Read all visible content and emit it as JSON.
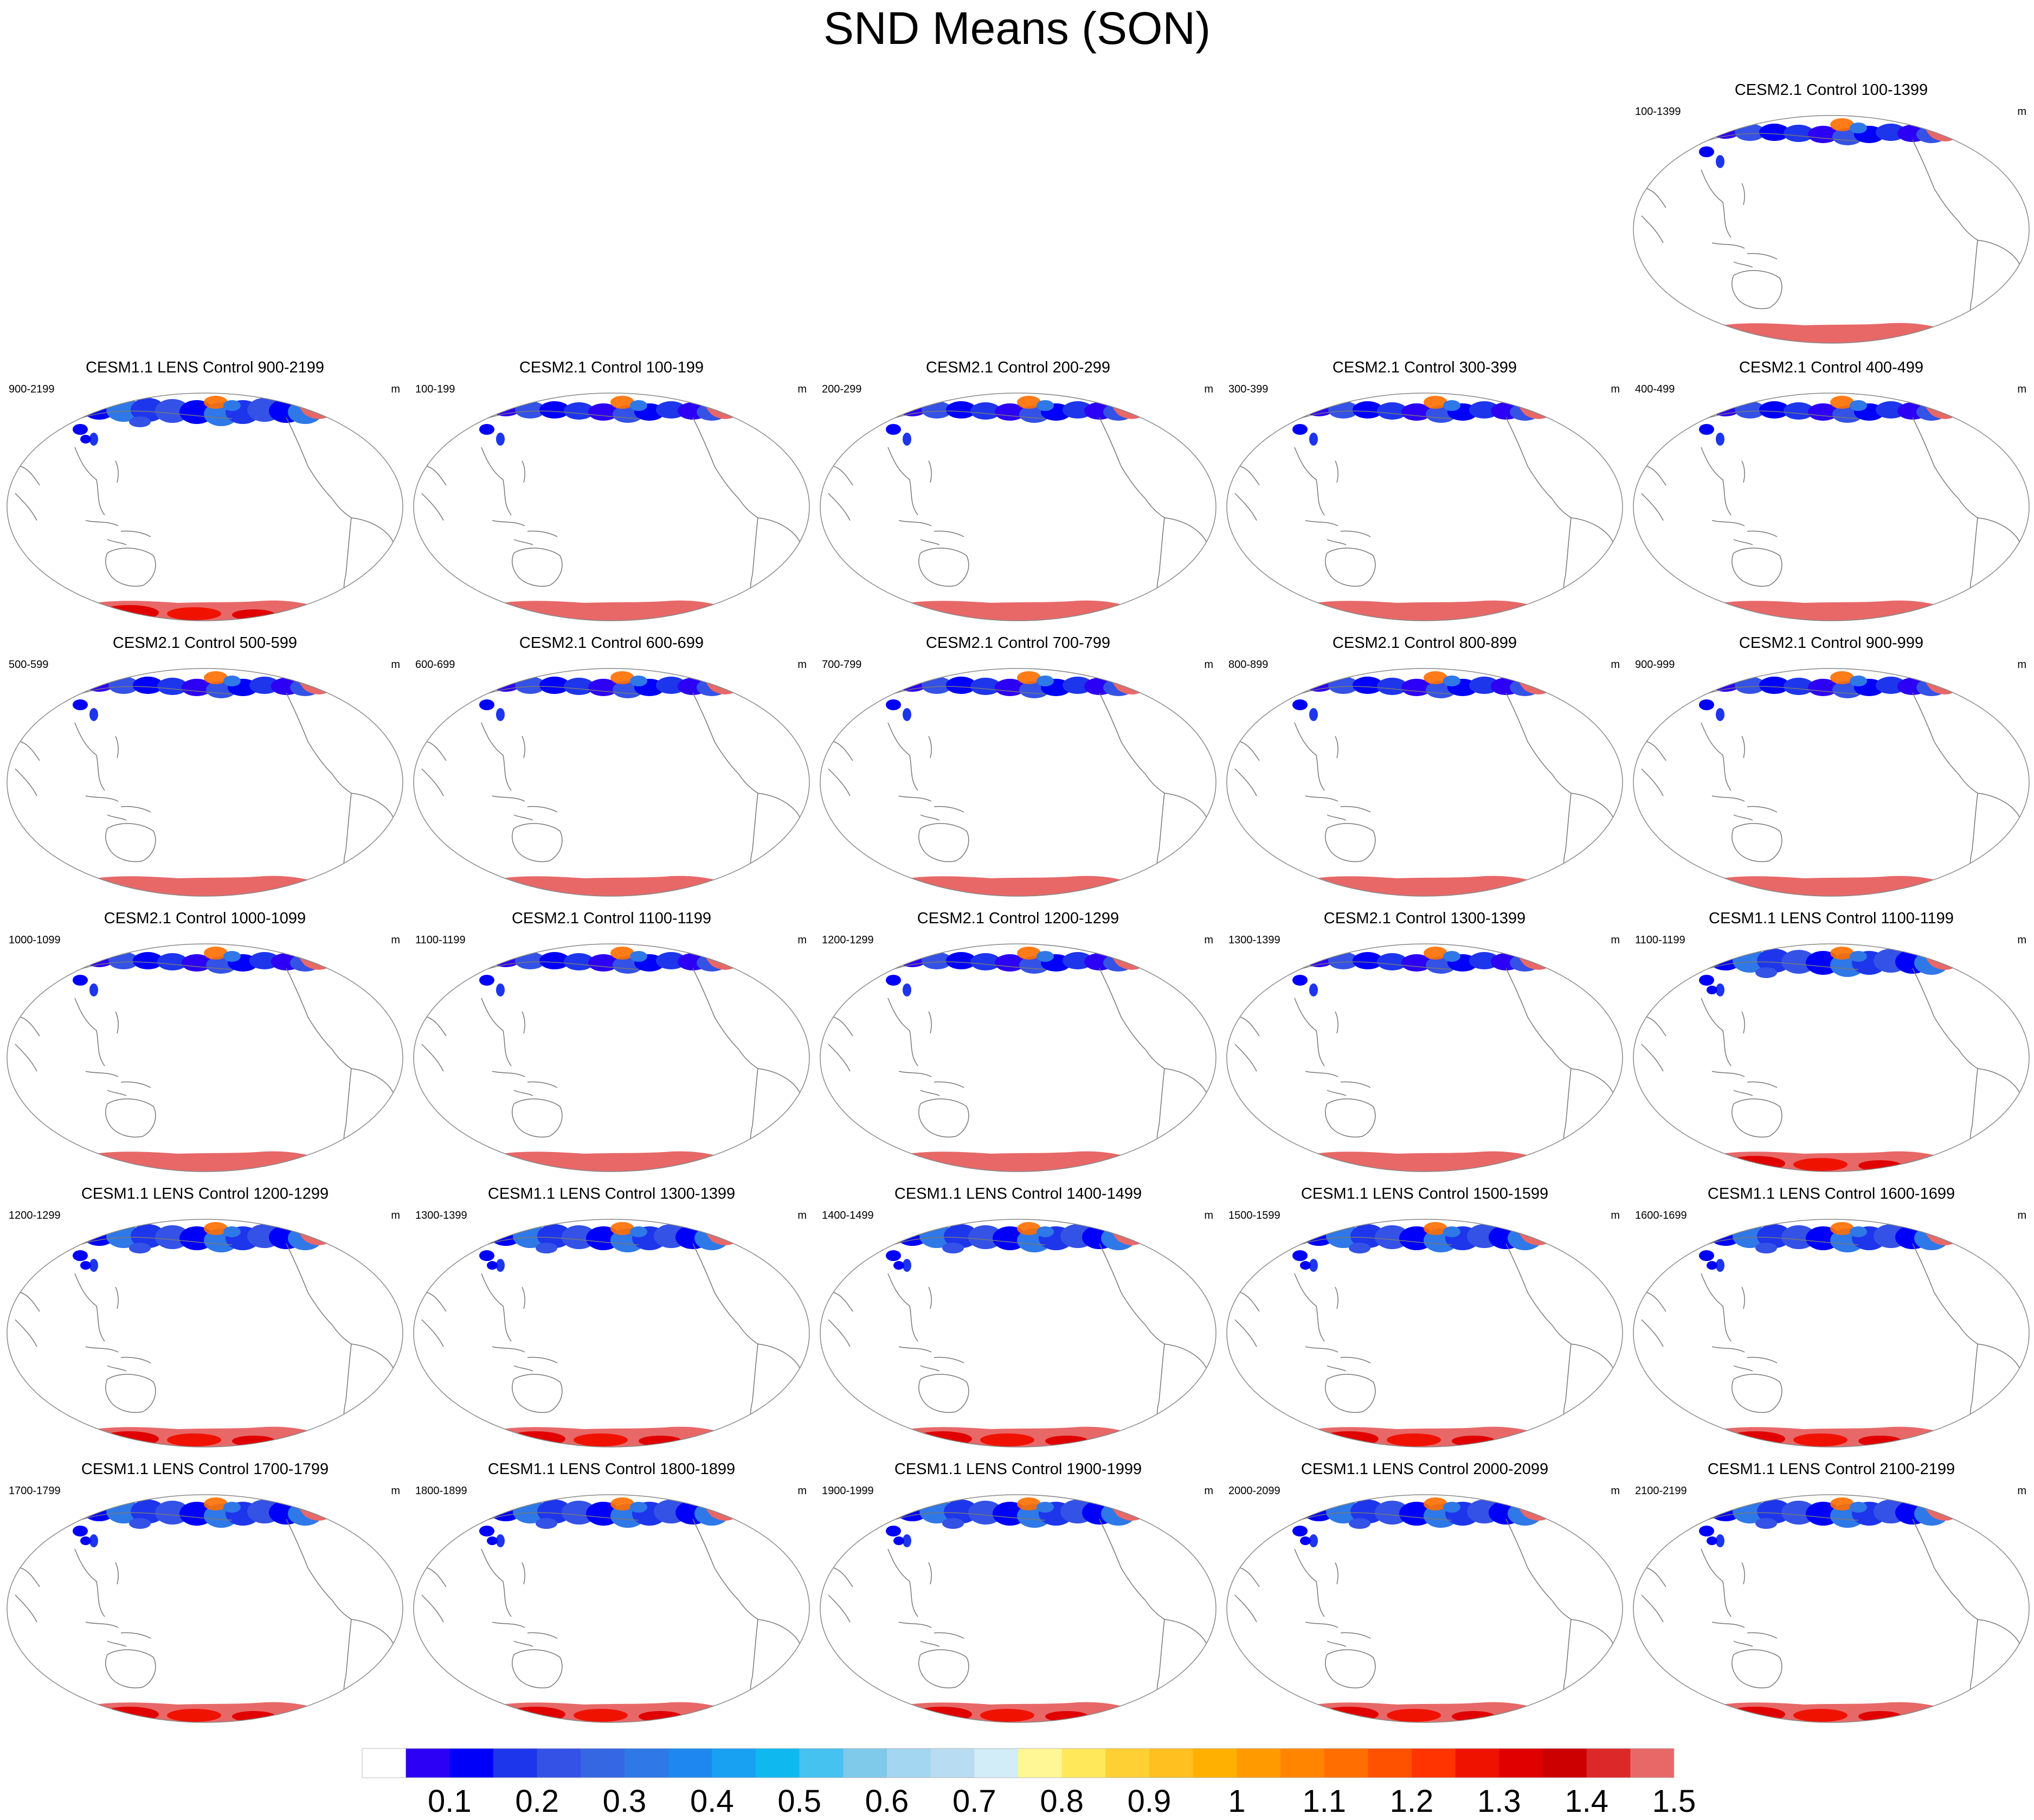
{
  "title": "SND Means (SON)",
  "panels": [
    {
      "title": "CESM2.1 Control 100-1399",
      "left": "100-1399",
      "right": "m",
      "type": "cesm2"
    },
    {
      "title": "CESM1.1 LENS Control 900-2199",
      "left": "900-2199",
      "right": "m",
      "type": "lens"
    },
    {
      "title": "CESM2.1 Control 100-199",
      "left": "100-199",
      "right": "m",
      "type": "cesm2"
    },
    {
      "title": "CESM2.1 Control 200-299",
      "left": "200-299",
      "right": "m",
      "type": "cesm2"
    },
    {
      "title": "CESM2.1 Control 300-399",
      "left": "300-399",
      "right": "m",
      "type": "cesm2"
    },
    {
      "title": "CESM2.1 Control 400-499",
      "left": "400-499",
      "right": "m",
      "type": "cesm2"
    },
    {
      "title": "CESM2.1 Control 500-599",
      "left": "500-599",
      "right": "m",
      "type": "cesm2"
    },
    {
      "title": "CESM2.1 Control 600-699",
      "left": "600-699",
      "right": "m",
      "type": "cesm2"
    },
    {
      "title": "CESM2.1 Control 700-799",
      "left": "700-799",
      "right": "m",
      "type": "cesm2"
    },
    {
      "title": "CESM2.1 Control 800-899",
      "left": "800-899",
      "right": "m",
      "type": "cesm2"
    },
    {
      "title": "CESM2.1 Control 900-999",
      "left": "900-999",
      "right": "m",
      "type": "cesm2"
    },
    {
      "title": "CESM2.1 Control 1000-1099",
      "left": "1000-1099",
      "right": "m",
      "type": "cesm2"
    },
    {
      "title": "CESM2.1 Control 1100-1199",
      "left": "1100-1199",
      "right": "m",
      "type": "cesm2"
    },
    {
      "title": "CESM2.1 Control 1200-1299",
      "left": "1200-1299",
      "right": "m",
      "type": "cesm2"
    },
    {
      "title": "CESM2.1 Control 1300-1399",
      "left": "1300-1399",
      "right": "m",
      "type": "cesm2"
    },
    {
      "title": "CESM1.1 LENS Control 1100-1199",
      "left": "1100-1199",
      "right": "m",
      "type": "lens"
    },
    {
      "title": "CESM1.1 LENS Control 1200-1299",
      "left": "1200-1299",
      "right": "m",
      "type": "lens"
    },
    {
      "title": "CESM1.1 LENS Control 1300-1399",
      "left": "1300-1399",
      "right": "m",
      "type": "lens"
    },
    {
      "title": "CESM1.1 LENS Control 1400-1499",
      "left": "1400-1499",
      "right": "m",
      "type": "lens"
    },
    {
      "title": "CESM1.1 LENS Control 1500-1599",
      "left": "1500-1599",
      "right": "m",
      "type": "lens"
    },
    {
      "title": "CESM1.1 LENS Control 1600-1699",
      "left": "1600-1699",
      "right": "m",
      "type": "lens"
    },
    {
      "title": "CESM1.1 LENS Control 1700-1799",
      "left": "1700-1799",
      "right": "m",
      "type": "lens"
    },
    {
      "title": "CESM1.1 LENS Control 1800-1899",
      "left": "1800-1899",
      "right": "m",
      "type": "lens"
    },
    {
      "title": "CESM1.1 LENS Control 1900-1999",
      "left": "1900-1999",
      "right": "m",
      "type": "lens"
    },
    {
      "title": "CESM1.1 LENS Control 2000-2099",
      "left": "2000-2099",
      "right": "m",
      "type": "lens"
    },
    {
      "title": "CESM1.1 LENS Control 2100-2199",
      "left": "2100-2199",
      "right": "m",
      "type": "lens"
    }
  ],
  "colorbar": {
    "colors": [
      "#ffffff",
      "#2c00f5",
      "#0000fa",
      "#1d36ec",
      "#3452e6",
      "#3667e3",
      "#2f78e8",
      "#1f88f0",
      "#18a0f3",
      "#10b8f0",
      "#46c2f0",
      "#7fc9ea",
      "#a3d6f0",
      "#b8dcf1",
      "#d2ecf8",
      "#fff696",
      "#ffe85a",
      "#ffd033",
      "#ffc020",
      "#ffb000",
      "#ff9a00",
      "#ff8400",
      "#ff6e00",
      "#ff5200",
      "#ff3400",
      "#f01200",
      "#e00000",
      "#cc0000",
      "#dc2828",
      "#e86868"
    ],
    "labels": [
      "0.1",
      "0.2",
      "0.3",
      "0.4",
      "0.5",
      "0.6",
      "0.7",
      "0.8",
      "0.9",
      "1",
      "1.1",
      "1.2",
      "1.3",
      "1.4",
      "1.5"
    ]
  }
}
